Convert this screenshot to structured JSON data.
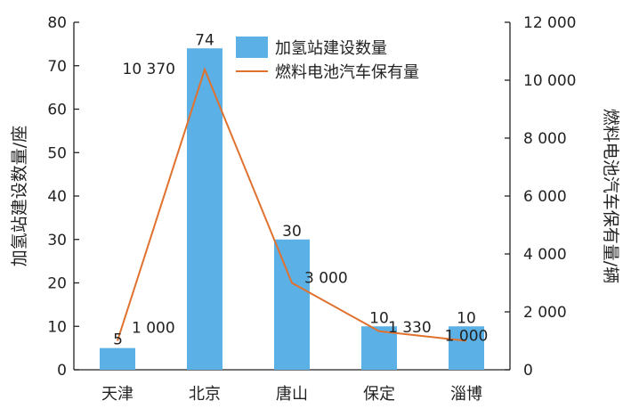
{
  "chart_data": {
    "type": "bar",
    "categories": [
      "天津",
      "北京",
      "唐山",
      "保定",
      "淄博"
    ],
    "series": [
      {
        "name": "加氢站建设数量",
        "type": "bar",
        "axis": "left",
        "values": [
          5,
          74,
          30,
          10,
          10
        ],
        "labels": [
          "5",
          "74",
          "30",
          "10",
          "10"
        ]
      },
      {
        "name": "燃料电池汽车保有量",
        "type": "line",
        "axis": "right",
        "values": [
          1000,
          10370,
          3000,
          1330,
          1000
        ],
        "labels": [
          "1 000",
          "10 370",
          "3 000",
          "1 330",
          "1 000"
        ]
      }
    ],
    "ylabel": "加氢站建设数量/座",
    "y2label": "燃料电池汽车保有量/辆",
    "ylim": [
      0,
      80
    ],
    "y2lim": [
      0,
      12000
    ],
    "yticks": [
      "0",
      "10",
      "20",
      "30",
      "40",
      "50",
      "60",
      "70",
      "80"
    ],
    "y2ticks": [
      "0",
      "2 000",
      "4 000",
      "6 000",
      "8 000",
      "10 000",
      "12 000"
    ],
    "legend_position": "top-center",
    "grid": false,
    "colors": {
      "bar": "#5BB1E6",
      "line": "#E0712F",
      "axis": "#222222"
    }
  }
}
